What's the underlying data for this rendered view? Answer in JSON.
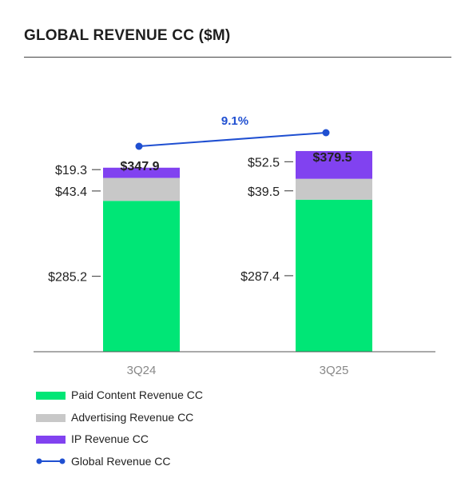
{
  "header": {
    "title": "GLOBAL REVENUE CC ($M)"
  },
  "chart_data": {
    "type": "bar",
    "stacked": true,
    "categories": [
      "3Q24",
      "3Q25"
    ],
    "series": [
      {
        "name": "Paid Content Revenue CC",
        "values": [
          285.2,
          287.4
        ],
        "color": "#00e676",
        "labels": [
          "$285.2",
          "$287.4"
        ]
      },
      {
        "name": "Advertising Revenue CC",
        "values": [
          43.4,
          39.5
        ],
        "color": "#c8c8c8",
        "labels": [
          "$43.4",
          "$39.5"
        ]
      },
      {
        "name": "IP Revenue CC",
        "values": [
          19.3,
          52.5
        ],
        "color": "#8142f0",
        "labels": [
          "$19.3",
          "$52.5"
        ]
      }
    ],
    "totals": {
      "name": "Global Revenue CC",
      "values": [
        347.9,
        379.5
      ],
      "labels": [
        "$347.9",
        "$379.5"
      ],
      "color": "#1f4fd1"
    },
    "growth_label": "9.1%",
    "ylim": [
      0,
      400
    ],
    "grid": false,
    "legend_position": "bottom-left"
  }
}
